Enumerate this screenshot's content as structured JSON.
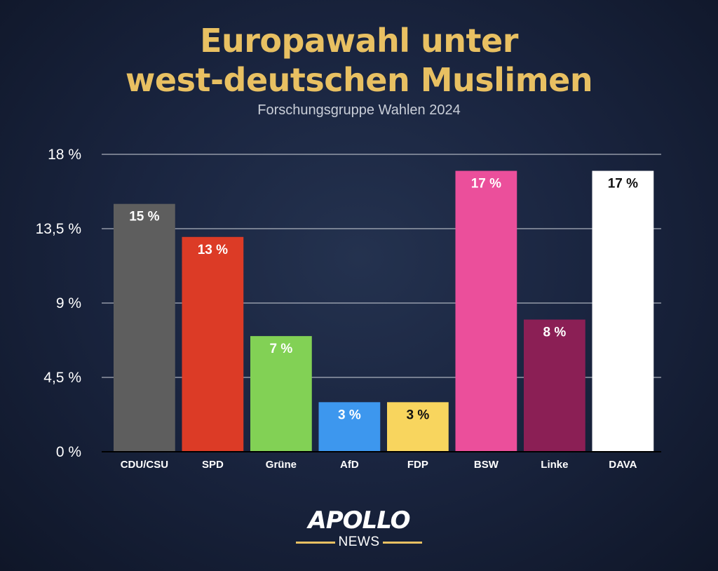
{
  "chart_data": {
    "type": "bar",
    "title_line1": "Europawahl unter",
    "title_line2": "west-deutschen Muslimen",
    "subtitle": "Forschungsgruppe Wahlen 2024",
    "categories": [
      "CDU/CSU",
      "SPD",
      "Grüne",
      "AfD",
      "FDP",
      "BSW",
      "Linke",
      "DAVA"
    ],
    "values": [
      15,
      13,
      7,
      3,
      3,
      17,
      8,
      17
    ],
    "data_labels": [
      "15 %",
      "13 %",
      "7 %",
      "3 %",
      "3 %",
      "17 %",
      "8 %",
      "17 %"
    ],
    "colors": [
      "#5e5e5e",
      "#dc3b26",
      "#82d155",
      "#3d97ee",
      "#f8d55e",
      "#eb4f9b",
      "#8b1f55",
      "#ffffff"
    ],
    "label_colors": [
      "#ffffff",
      "#ffffff",
      "#ffffff",
      "#ffffff",
      "#111111",
      "#ffffff",
      "#ffffff",
      "#111111"
    ],
    "ylim": [
      0,
      18
    ],
    "yticks": [
      0,
      4.5,
      9,
      13.5,
      18
    ],
    "ytick_labels": [
      "0 %",
      "4,5 %",
      "9 %",
      "13,5 %",
      "18 %"
    ],
    "grid": true
  },
  "logo": {
    "main": "APOLLO",
    "sub": "NEWS"
  }
}
